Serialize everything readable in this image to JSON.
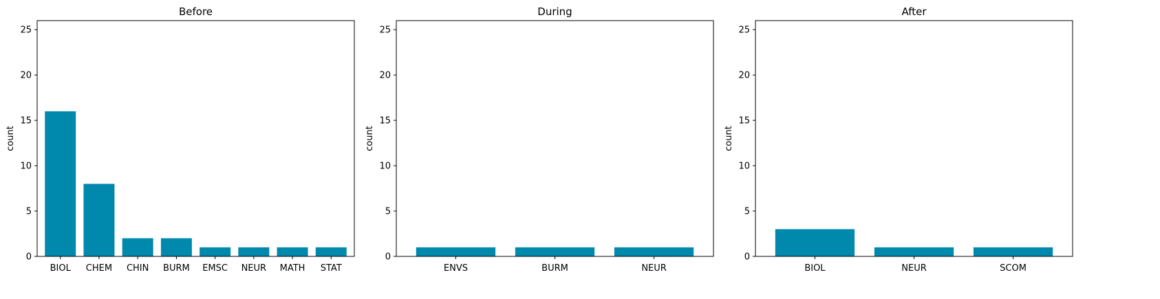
{
  "chart_data": [
    {
      "type": "bar",
      "title": "Before",
      "xlabel": "",
      "ylabel": "count",
      "categories": [
        "BIOL",
        "CHEM",
        "CHIN",
        "BURM",
        "EMSC",
        "NEUR",
        "MATH",
        "STAT"
      ],
      "values": [
        16,
        8,
        2,
        2,
        1,
        1,
        1,
        1
      ],
      "ylim": [
        0,
        26
      ],
      "yticks": [
        0,
        5,
        10,
        15,
        20,
        25
      ],
      "grid": false,
      "color": "#0088ad"
    },
    {
      "type": "bar",
      "title": "During",
      "xlabel": "",
      "ylabel": "count",
      "categories": [
        "ENVS",
        "BURM",
        "NEUR"
      ],
      "values": [
        1,
        1,
        1
      ],
      "ylim": [
        0,
        26
      ],
      "yticks": [
        0,
        5,
        10,
        15,
        20,
        25
      ],
      "grid": false,
      "color": "#0088ad"
    },
    {
      "type": "bar",
      "title": "After",
      "xlabel": "",
      "ylabel": "count",
      "categories": [
        "BIOL",
        "NEUR",
        "SCOM"
      ],
      "values": [
        3,
        1,
        1
      ],
      "ylim": [
        0,
        26
      ],
      "yticks": [
        0,
        5,
        10,
        15,
        20,
        25
      ],
      "grid": false,
      "color": "#0088ad"
    }
  ]
}
